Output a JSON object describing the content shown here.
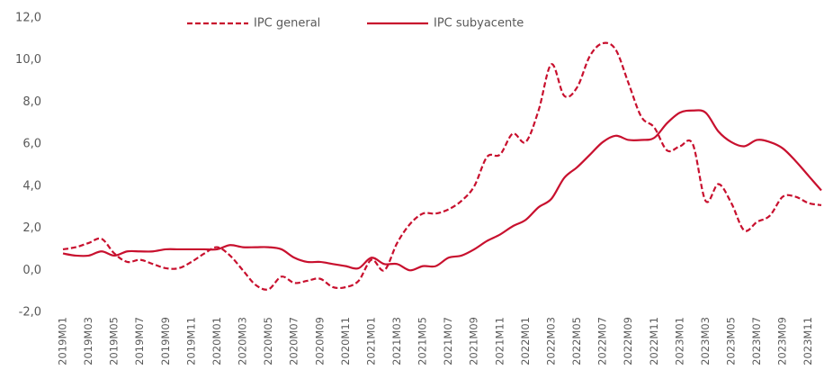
{
  "chart_data": {
    "type": "line",
    "categories": [
      "2019M01",
      null,
      "2019M03",
      null,
      "2019M05",
      null,
      "2019M07",
      null,
      "2019M09",
      null,
      "2019M11",
      null,
      "2020M01",
      null,
      "2020M03",
      null,
      "2020M05",
      null,
      "2020M07",
      null,
      "2020M09",
      null,
      "2020M11",
      null,
      "2021M01",
      null,
      "2021M03",
      null,
      "2021M05",
      null,
      "2021M07",
      null,
      "2021M09",
      null,
      "2021M11",
      null,
      "2022M01",
      null,
      "2022M03",
      null,
      "2022M05",
      null,
      "2022M07",
      null,
      "2022M09",
      null,
      "2022M11",
      null,
      "2023M01",
      null,
      "2023M03",
      null,
      "2023M05",
      null,
      "2023M07",
      null,
      "2023M09",
      null,
      "2023M11",
      null
    ],
    "series": [
      {
        "name": "IPC general",
        "color": "#c8102e",
        "dashed": true,
        "values": [
          1.0,
          1.1,
          1.3,
          1.5,
          0.8,
          0.4,
          0.5,
          0.3,
          0.1,
          0.1,
          0.4,
          0.8,
          1.1,
          0.7,
          0.0,
          -0.7,
          -0.9,
          -0.3,
          -0.6,
          -0.5,
          -0.4,
          -0.8,
          -0.8,
          -0.5,
          0.5,
          0.0,
          1.3,
          2.2,
          2.7,
          2.7,
          2.9,
          3.3,
          4.0,
          5.4,
          5.5,
          6.5,
          6.1,
          7.6,
          9.8,
          8.3,
          8.7,
          10.2,
          10.8,
          10.5,
          8.9,
          7.3,
          6.8,
          5.7,
          5.9,
          6.0,
          3.3,
          4.1,
          3.2,
          1.9,
          2.3,
          2.6,
          3.5,
          3.5,
          3.2,
          3.1
        ]
      },
      {
        "name": "IPC subyacente",
        "color": "#c8102e",
        "dashed": false,
        "values": [
          0.8,
          0.7,
          0.7,
          0.9,
          0.7,
          0.9,
          0.9,
          0.9,
          1.0,
          1.0,
          1.0,
          1.0,
          1.0,
          1.2,
          1.1,
          1.1,
          1.1,
          1.0,
          0.6,
          0.4,
          0.4,
          0.3,
          0.2,
          0.1,
          0.6,
          0.3,
          0.3,
          0.0,
          0.2,
          0.2,
          0.6,
          0.7,
          1.0,
          1.4,
          1.7,
          2.1,
          2.4,
          3.0,
          3.4,
          4.4,
          4.9,
          5.5,
          6.1,
          6.4,
          6.2,
          6.2,
          6.3,
          7.0,
          7.5,
          7.6,
          7.5,
          6.6,
          6.1,
          5.9,
          6.2,
          6.1,
          5.8,
          5.2,
          4.5,
          3.8
        ]
      }
    ],
    "ylim": [
      -2,
      12
    ],
    "yticks": [
      {
        "value": -2,
        "label": "-2,0"
      },
      {
        "value": 0,
        "label": "0,0"
      },
      {
        "value": 2,
        "label": "2,0"
      },
      {
        "value": 4,
        "label": "4,0"
      },
      {
        "value": 6,
        "label": "6,0"
      },
      {
        "value": 8,
        "label": "8,0"
      },
      {
        "value": 10,
        "label": "10,0"
      },
      {
        "value": 12,
        "label": "12,0"
      }
    ],
    "grid": false
  }
}
